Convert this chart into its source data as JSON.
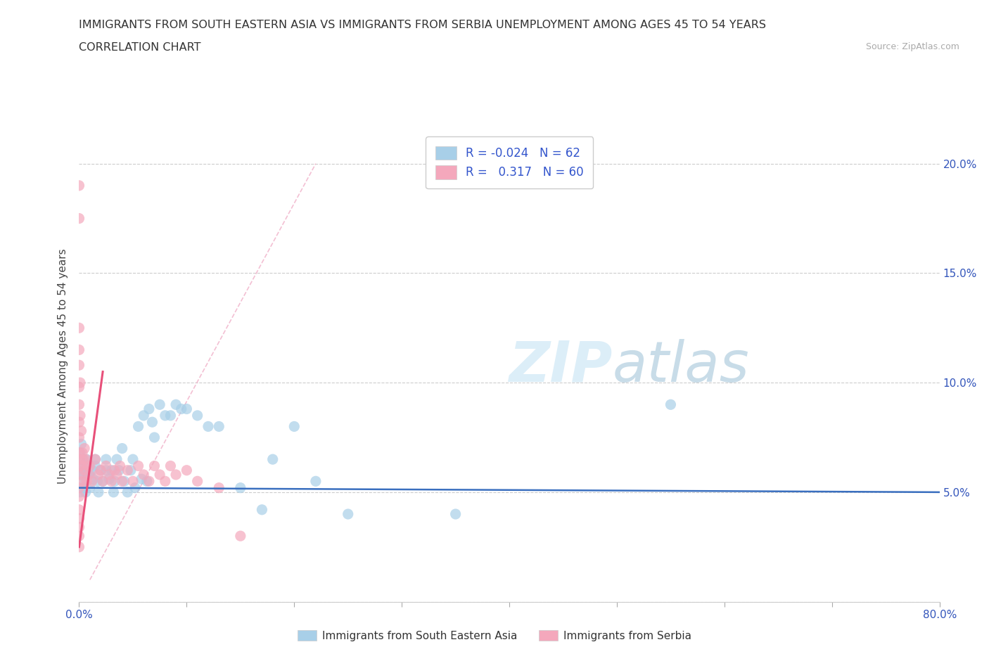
{
  "title_line1": "IMMIGRANTS FROM SOUTH EASTERN ASIA VS IMMIGRANTS FROM SERBIA UNEMPLOYMENT AMONG AGES 45 TO 54 YEARS",
  "title_line2": "CORRELATION CHART",
  "source_text": "Source: ZipAtlas.com",
  "ylabel": "Unemployment Among Ages 45 to 54 years",
  "xlim": [
    0.0,
    0.8
  ],
  "ylim": [
    0.0,
    0.215
  ],
  "yticks": [
    0.0,
    0.05,
    0.1,
    0.15,
    0.2
  ],
  "xticks": [
    0.0,
    0.1,
    0.2,
    0.3,
    0.4,
    0.5,
    0.6,
    0.7,
    0.8
  ],
  "legend_R1": "-0.024",
  "legend_N1": "62",
  "legend_R2": "0.317",
  "legend_N2": "60",
  "color_blue": "#a8cfe8",
  "color_pink": "#f4a8bc",
  "color_trendline_blue": "#3a6fbf",
  "color_trendline_pink": "#e8507a",
  "color_refline": "#f0b0c8",
  "watermark_color": "#dceef8",
  "blue_scatter_x": [
    0.001,
    0.001,
    0.001,
    0.002,
    0.002,
    0.003,
    0.003,
    0.004,
    0.005,
    0.005,
    0.006,
    0.007,
    0.008,
    0.009,
    0.01,
    0.01,
    0.012,
    0.013,
    0.015,
    0.015,
    0.017,
    0.018,
    0.02,
    0.022,
    0.025,
    0.025,
    0.028,
    0.03,
    0.032,
    0.033,
    0.035,
    0.037,
    0.04,
    0.042,
    0.045,
    0.048,
    0.05,
    0.052,
    0.055,
    0.058,
    0.06,
    0.063,
    0.065,
    0.068,
    0.07,
    0.075,
    0.08,
    0.085,
    0.09,
    0.095,
    0.1,
    0.11,
    0.12,
    0.13,
    0.15,
    0.17,
    0.18,
    0.2,
    0.22,
    0.25,
    0.35,
    0.55
  ],
  "blue_scatter_y": [
    0.068,
    0.058,
    0.05,
    0.072,
    0.062,
    0.065,
    0.058,
    0.052,
    0.06,
    0.055,
    0.05,
    0.065,
    0.058,
    0.062,
    0.058,
    0.052,
    0.06,
    0.056,
    0.065,
    0.062,
    0.055,
    0.05,
    0.06,
    0.055,
    0.065,
    0.06,
    0.056,
    0.06,
    0.05,
    0.055,
    0.065,
    0.06,
    0.07,
    0.055,
    0.05,
    0.06,
    0.065,
    0.052,
    0.08,
    0.056,
    0.085,
    0.055,
    0.088,
    0.082,
    0.075,
    0.09,
    0.085,
    0.085,
    0.09,
    0.088,
    0.088,
    0.085,
    0.08,
    0.08,
    0.052,
    0.042,
    0.065,
    0.08,
    0.055,
    0.04,
    0.04,
    0.09
  ],
  "pink_scatter_x": [
    0.0,
    0.0,
    0.0,
    0.0,
    0.0,
    0.0,
    0.0,
    0.0,
    0.0,
    0.0,
    0.0,
    0.0,
    0.0,
    0.0,
    0.0,
    0.0,
    0.0,
    0.0,
    0.0,
    0.001,
    0.001,
    0.001,
    0.002,
    0.002,
    0.003,
    0.003,
    0.004,
    0.005,
    0.005,
    0.006,
    0.007,
    0.008,
    0.009,
    0.01,
    0.012,
    0.015,
    0.018,
    0.02,
    0.022,
    0.025,
    0.028,
    0.03,
    0.033,
    0.035,
    0.038,
    0.04,
    0.045,
    0.05,
    0.055,
    0.06,
    0.065,
    0.07,
    0.075,
    0.08,
    0.085,
    0.09,
    0.1,
    0.11,
    0.13,
    0.15
  ],
  "pink_scatter_y": [
    0.19,
    0.175,
    0.125,
    0.115,
    0.108,
    0.098,
    0.09,
    0.082,
    0.075,
    0.068,
    0.062,
    0.058,
    0.052,
    0.048,
    0.042,
    0.038,
    0.034,
    0.03,
    0.025,
    0.1,
    0.085,
    0.065,
    0.078,
    0.062,
    0.068,
    0.055,
    0.065,
    0.07,
    0.06,
    0.065,
    0.055,
    0.062,
    0.058,
    0.062,
    0.055,
    0.065,
    0.058,
    0.06,
    0.055,
    0.062,
    0.058,
    0.055,
    0.06,
    0.058,
    0.062,
    0.055,
    0.06,
    0.055,
    0.062,
    0.058,
    0.055,
    0.062,
    0.058,
    0.055,
    0.062,
    0.058,
    0.06,
    0.055,
    0.052,
    0.03
  ]
}
